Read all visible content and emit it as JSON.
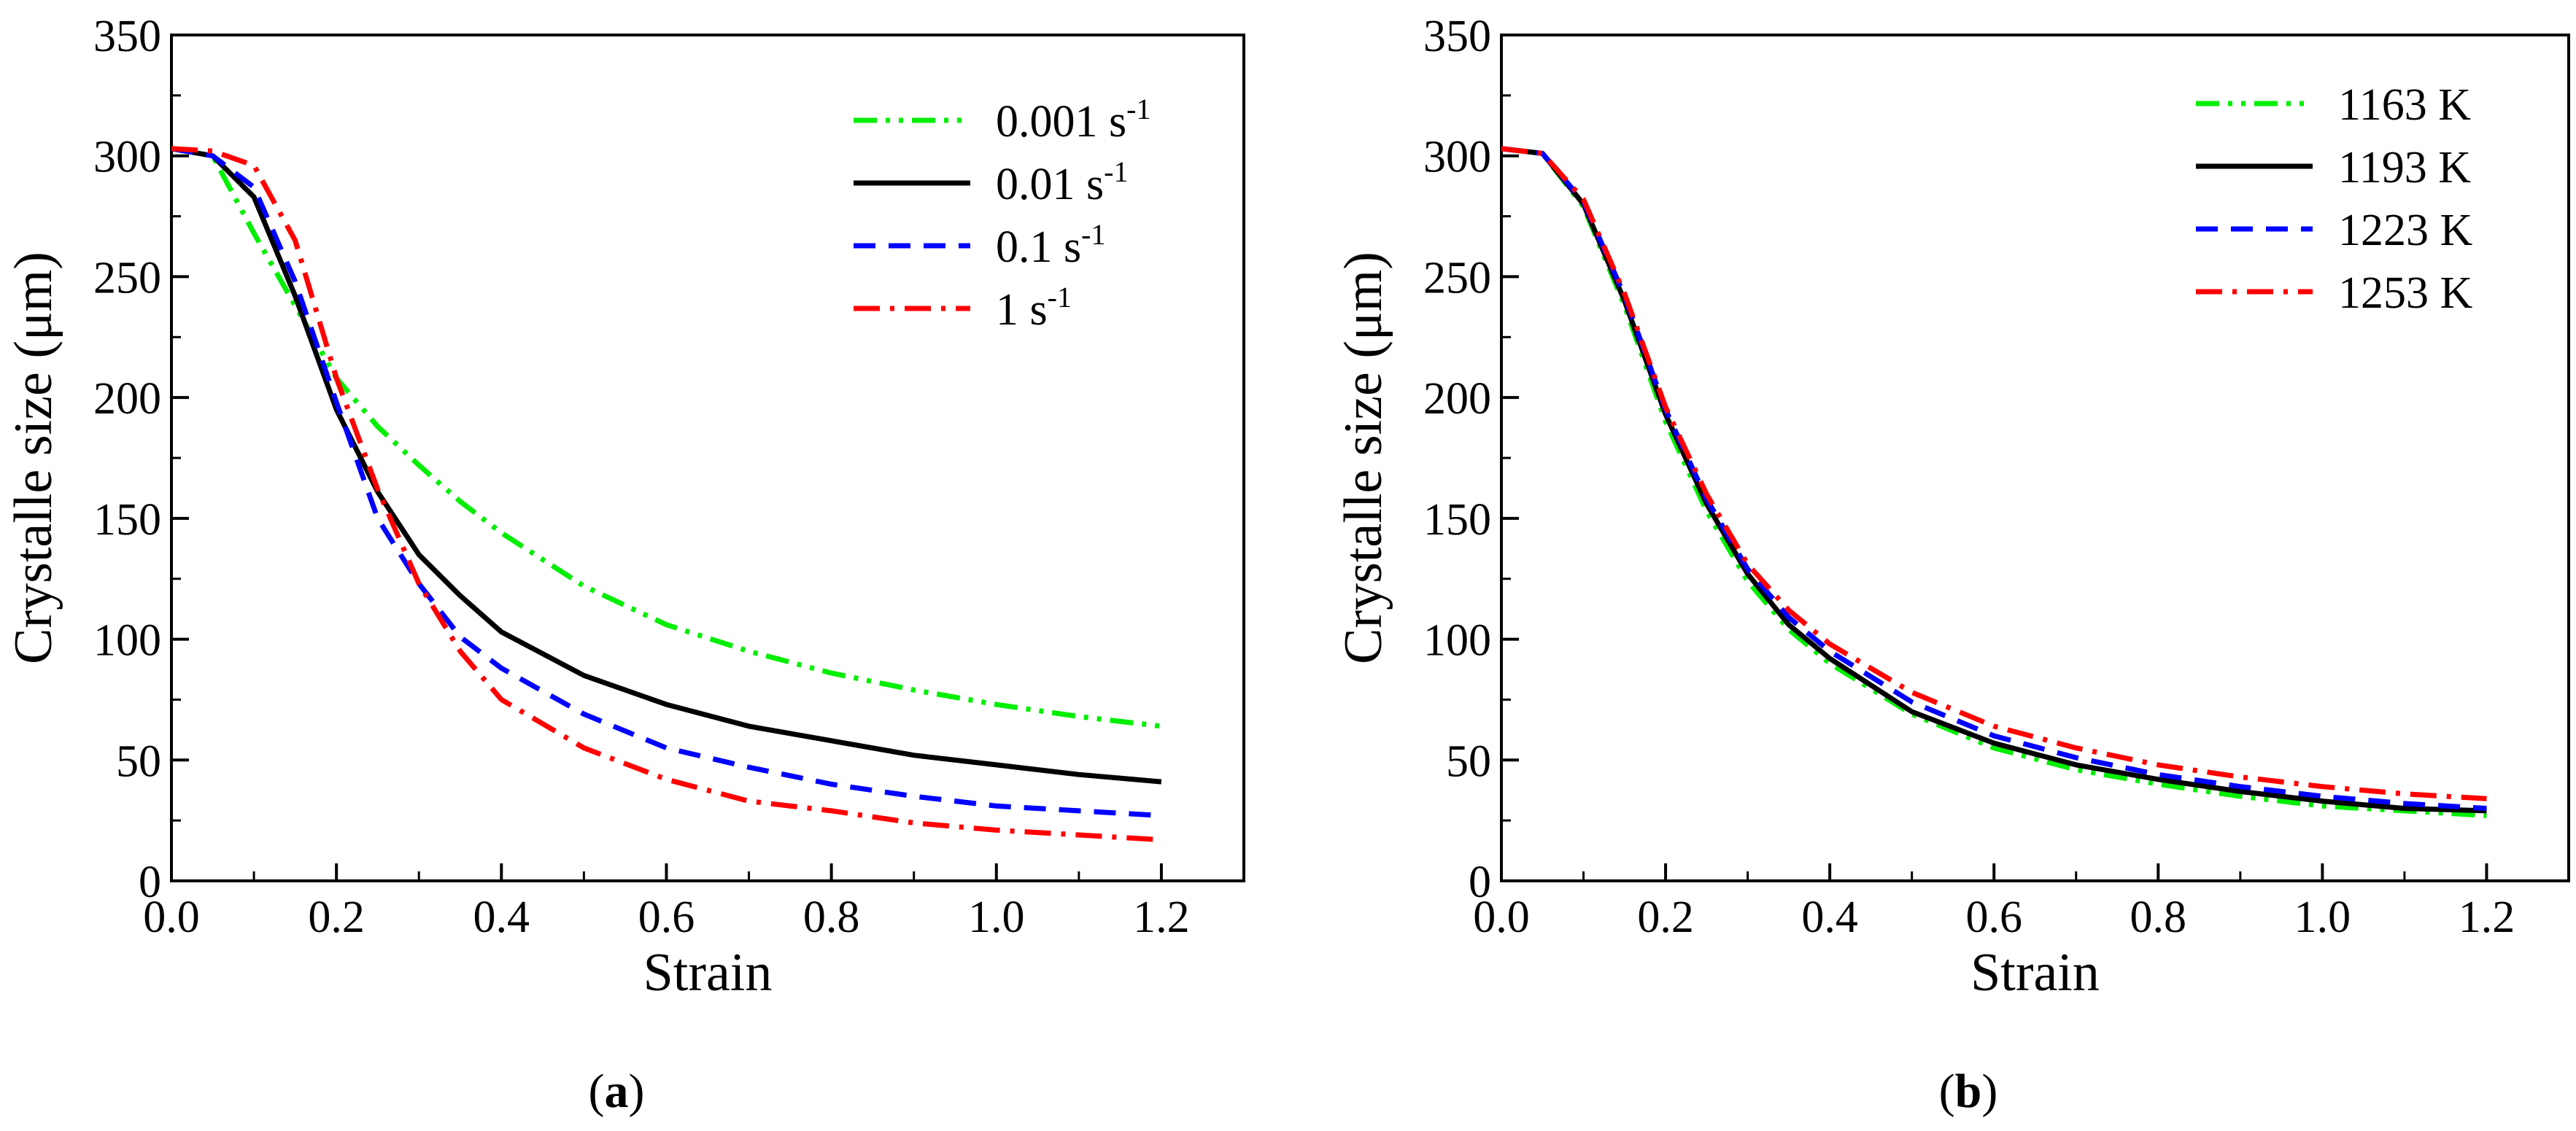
{
  "chart_data": [
    {
      "type": "line",
      "id": "a",
      "caption": "a",
      "xlabel": "Strain",
      "ylabel": "Crystalle size (μm)",
      "xlim": [
        0.0,
        1.3
      ],
      "ylim": [
        0,
        350
      ],
      "xticks": [
        "0.0",
        "0.2",
        "0.4",
        "0.6",
        "0.8",
        "1.0",
        "1.2"
      ],
      "yticks": [
        "0",
        "50",
        "100",
        "150",
        "200",
        "250",
        "300",
        "350"
      ],
      "legend_position": "top-right",
      "x": [
        0.0,
        0.05,
        0.1,
        0.15,
        0.2,
        0.25,
        0.3,
        0.35,
        0.4,
        0.5,
        0.6,
        0.7,
        0.8,
        0.9,
        1.0,
        1.1,
        1.2
      ],
      "series": [
        {
          "name": "0.001 s",
          "sup": "-1",
          "color": "#00ee00",
          "dash": "dash-dot-dot",
          "values": [
            303,
            300,
            268,
            238,
            208,
            188,
            172,
            157,
            144,
            122,
            106,
            95,
            86,
            79,
            73,
            68,
            64
          ]
        },
        {
          "name": "0.01 s",
          "sup": "-1",
          "color": "#000000",
          "dash": "solid",
          "values": [
            303,
            300,
            283,
            242,
            195,
            161,
            135,
            118,
            103,
            85,
            73,
            64,
            58,
            52,
            48,
            44,
            41
          ]
        },
        {
          "name": "0.1 s",
          "sup": "-1",
          "color": "#0000ff",
          "dash": "dash",
          "values": [
            303,
            300,
            287,
            248,
            198,
            150,
            123,
            101,
            88,
            69,
            55,
            47,
            40,
            35,
            31,
            29,
            27
          ]
        },
        {
          "name": "1 s",
          "sup": "-1",
          "color": "#ff0000",
          "dash": "dash-dot",
          "values": [
            303,
            302,
            296,
            265,
            208,
            162,
            123,
            95,
            75,
            55,
            42,
            33,
            29,
            24,
            21,
            19,
            17
          ]
        }
      ]
    },
    {
      "type": "line",
      "id": "b",
      "caption": "b",
      "xlabel": "Strain",
      "ylabel": "Crystalle size (μm)",
      "xlim": [
        0.0,
        1.3
      ],
      "ylim": [
        0,
        350
      ],
      "xticks": [
        "0.0",
        "0.2",
        "0.4",
        "0.6",
        "0.8",
        "1.0",
        "1.2"
      ],
      "yticks": [
        "0",
        "50",
        "100",
        "150",
        "200",
        "250",
        "300",
        "350"
      ],
      "legend_position": "top-right",
      "x": [
        0.0,
        0.05,
        0.1,
        0.15,
        0.2,
        0.25,
        0.3,
        0.35,
        0.4,
        0.5,
        0.6,
        0.7,
        0.8,
        0.9,
        1.0,
        1.1,
        1.2
      ],
      "series": [
        {
          "name": "1163 K",
          "sup": "",
          "color": "#00ee00",
          "dash": "dash-dot-dot",
          "values": [
            303,
            301,
            279,
            238,
            190,
            153,
            124,
            104,
            90,
            69,
            55,
            46,
            40,
            35,
            31,
            29,
            27
          ]
        },
        {
          "name": "1193 K",
          "sup": "",
          "color": "#000000",
          "dash": "solid",
          "values": [
            303,
            301,
            280,
            240,
            193,
            156,
            127,
            106,
            92,
            70,
            57,
            48,
            42,
            37,
            33,
            30,
            29
          ]
        },
        {
          "name": "1223 K",
          "sup": "",
          "color": "#0000ff",
          "dash": "dash",
          "values": [
            303,
            301,
            281,
            242,
            195,
            158,
            129,
            109,
            95,
            74,
            60,
            51,
            44,
            39,
            35,
            32,
            30
          ]
        },
        {
          "name": "1253 K",
          "sup": "",
          "color": "#ff0000",
          "dash": "dash-dot",
          "values": [
            303,
            301,
            282,
            243,
            196,
            160,
            131,
            112,
            98,
            78,
            64,
            55,
            48,
            43,
            39,
            36,
            34
          ]
        }
      ]
    }
  ]
}
